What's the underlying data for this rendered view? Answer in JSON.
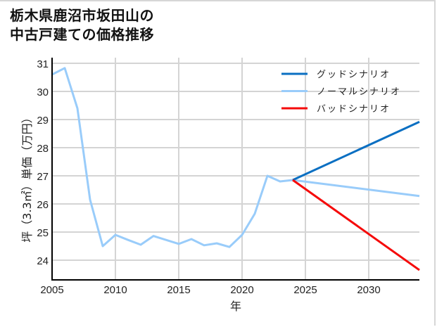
{
  "title": {
    "line1": "栃木県鹿沼市坂田山の",
    "line2": "中古戸建ての価格推移"
  },
  "chart_data": {
    "type": "line",
    "title": "栃木県鹿沼市坂田山の中古戸建ての価格推移",
    "xlabel": "年",
    "ylabel": "坪（3.3㎡）単価（万円）",
    "xlim": [
      2005,
      2034
    ],
    "ylim": [
      23.3,
      31.2
    ],
    "xticks": [
      2005,
      2010,
      2015,
      2020,
      2025,
      2030
    ],
    "yticks": [
      24,
      25,
      26,
      27,
      28,
      29,
      30,
      31
    ],
    "grid": true,
    "legend_position": "upper right",
    "series": [
      {
        "name": "グッドシナリオ",
        "color": "#0a6fc2",
        "x": [
          2024,
          2034
        ],
        "values": [
          26.85,
          28.92
        ]
      },
      {
        "name": "ノーマルシナリオ",
        "color": "#99ccfa",
        "x": [
          2005,
          2006,
          2007,
          2008,
          2009,
          2010,
          2011,
          2012,
          2013,
          2014,
          2015,
          2016,
          2017,
          2018,
          2019,
          2020,
          2021,
          2022,
          2023,
          2024,
          2034
        ],
        "values": [
          30.6,
          30.83,
          29.4,
          26.15,
          24.5,
          24.9,
          24.72,
          24.55,
          24.86,
          24.72,
          24.58,
          24.75,
          24.53,
          24.6,
          24.47,
          24.9,
          25.65,
          27.0,
          26.8,
          26.85,
          26.28
        ]
      },
      {
        "name": "バッドシナリオ",
        "color": "#f50a0a",
        "x": [
          2024,
          2034
        ],
        "values": [
          26.85,
          23.65
        ]
      }
    ]
  }
}
